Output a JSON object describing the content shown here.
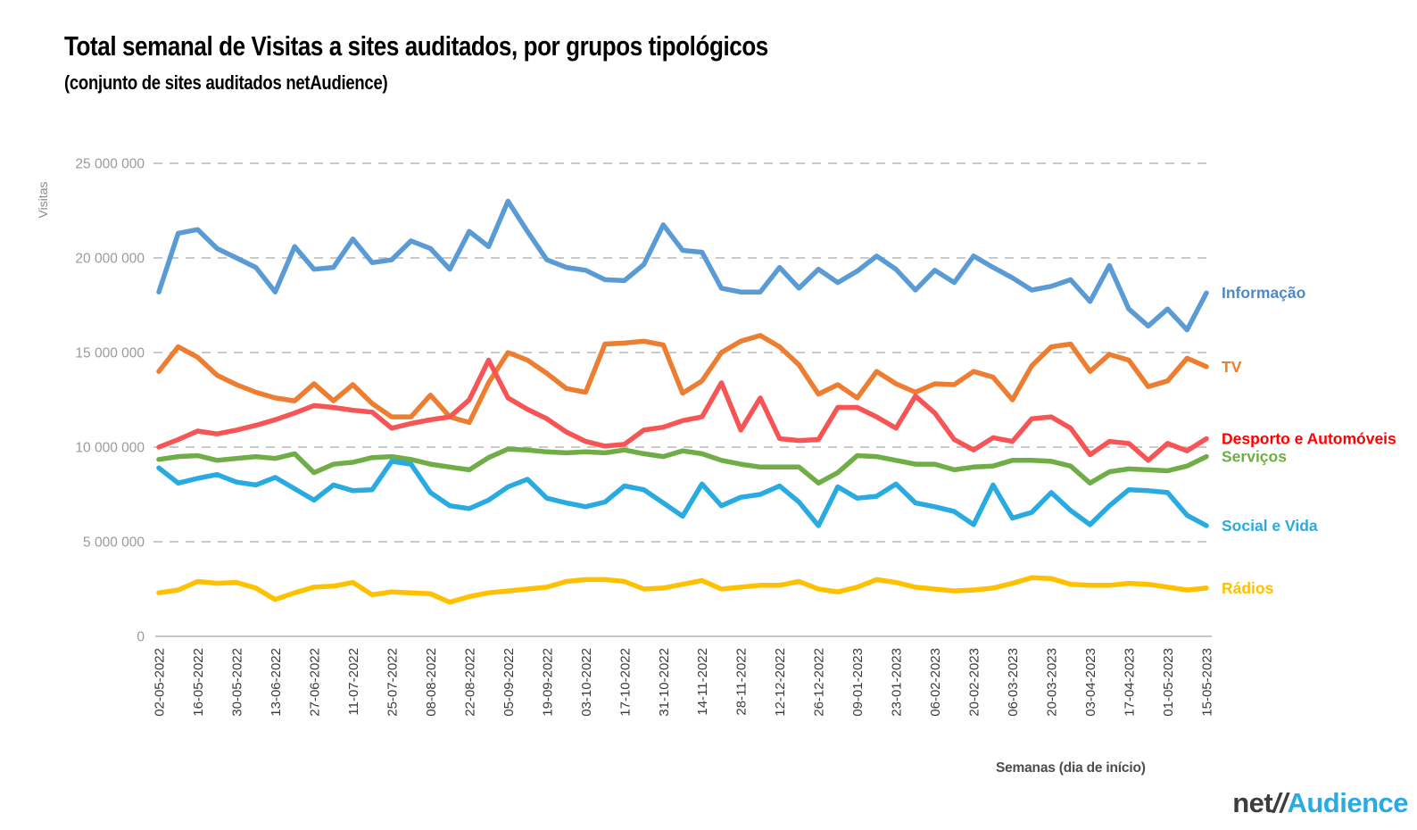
{
  "header": {
    "title": "Total semanal de Visitas a sites auditados, por grupos tipológicos",
    "subtitle": "(conjunto de sites auditados netAudience)"
  },
  "chart_data": {
    "type": "line",
    "units": "visits (values stored in millions)",
    "ylabel": "Visitas",
    "xlabel": "Semanas  (dia de início)",
    "ylim": [
      0,
      25000000
    ],
    "grid": "horizontal-dashed",
    "legend_position": "labels-at-line-ends-right",
    "y_tick_values_millions": [
      0,
      5,
      10,
      15,
      20,
      25
    ],
    "y_tick_labels": [
      "0",
      "5 000 000",
      "10 000 000",
      "15 000 000",
      "20 000 000",
      "25 000 000"
    ],
    "x_tick_every": 2,
    "x": [
      "02-05-2022",
      "09-05-2022",
      "16-05-2022",
      "23-05-2022",
      "30-05-2022",
      "06-06-2022",
      "13-06-2022",
      "20-06-2022",
      "27-06-2022",
      "04-07-2022",
      "11-07-2022",
      "18-07-2022",
      "25-07-2022",
      "01-08-2022",
      "08-08-2022",
      "15-08-2022",
      "22-08-2022",
      "29-08-2022",
      "05-09-2022",
      "12-09-2022",
      "19-09-2022",
      "26-09-2022",
      "03-10-2022",
      "10-10-2022",
      "17-10-2022",
      "24-10-2022",
      "31-10-2022",
      "07-11-2022",
      "14-11-2022",
      "21-11-2022",
      "28-11-2022",
      "05-12-2022",
      "12-12-2022",
      "19-12-2022",
      "26-12-2022",
      "02-01-2023",
      "09-01-2023",
      "16-01-2023",
      "23-01-2023",
      "30-01-2023",
      "06-02-2023",
      "13-02-2023",
      "20-02-2023",
      "27-02-2023",
      "06-03-2023",
      "13-03-2023",
      "20-03-2023",
      "27-03-2023",
      "03-04-2023",
      "10-04-2023",
      "17-04-2023",
      "24-04-2023",
      "01-05-2023",
      "08-05-2023",
      "15-05-2023"
    ],
    "x_tick_labels": [
      "02-05-2022",
      "16-05-2022",
      "30-05-2022",
      "13-06-2022",
      "27-06-2022",
      "11-07-2022",
      "25-07-2022",
      "08-08-2022",
      "22-08-2022",
      "05-09-2022",
      "19-09-2022",
      "03-10-2022",
      "17-10-2022",
      "31-10-2022",
      "14-11-2022",
      "28-11-2022",
      "12-12-2022",
      "26-12-2022",
      "09-01-2023",
      "23-01-2023",
      "06-02-2023",
      "20-02-2023",
      "06-03-2023",
      "20-03-2023",
      "03-04-2023",
      "17-04-2023",
      "01-05-2023",
      "15-05-2023"
    ],
    "series": [
      {
        "name": "Informação",
        "color": "#5B9BD5",
        "label_color": "#4E8AC8",
        "values_millions": [
          18.2,
          21.3,
          21.5,
          20.5,
          20.0,
          19.5,
          18.2,
          20.6,
          19.4,
          19.5,
          21.0,
          19.75,
          19.9,
          20.9,
          20.5,
          19.4,
          21.4,
          20.6,
          23.0,
          21.4,
          19.9,
          19.5,
          19.35,
          18.85,
          18.8,
          19.65,
          21.75,
          20.4,
          20.3,
          18.4,
          18.2,
          18.2,
          19.5,
          18.4,
          19.4,
          18.7,
          19.3,
          20.1,
          19.4,
          18.3,
          19.35,
          18.7,
          20.1,
          19.5,
          18.95,
          18.3,
          18.5,
          18.85,
          17.7,
          19.6,
          17.3,
          16.4,
          17.3,
          16.2,
          18.15
        ]
      },
      {
        "name": "TV",
        "color": "#ED7D31",
        "label_color": "#ED7D31",
        "values_millions": [
          14.0,
          15.3,
          14.75,
          13.8,
          13.3,
          12.9,
          12.6,
          12.45,
          13.35,
          12.45,
          13.3,
          12.3,
          11.6,
          11.6,
          12.75,
          11.6,
          11.3,
          13.4,
          15.0,
          14.6,
          13.9,
          13.1,
          12.9,
          15.45,
          15.5,
          15.6,
          15.4,
          12.85,
          13.5,
          15.0,
          15.6,
          15.9,
          15.3,
          14.35,
          12.8,
          13.3,
          12.6,
          14.0,
          13.35,
          12.9,
          13.35,
          13.3,
          14.0,
          13.7,
          12.5,
          14.3,
          15.3,
          15.45,
          14.0,
          14.9,
          14.6,
          13.2,
          13.5,
          14.7,
          14.25
        ]
      },
      {
        "name": "Desporto e Automóveis",
        "color": "#F75455",
        "label_color": "#FF0000",
        "values_millions": [
          10.0,
          10.4,
          10.85,
          10.7,
          10.9,
          11.15,
          11.45,
          11.8,
          12.2,
          12.1,
          11.95,
          11.85,
          11.0,
          11.25,
          11.45,
          11.6,
          12.5,
          14.6,
          12.6,
          12.0,
          11.5,
          10.8,
          10.3,
          10.05,
          10.15,
          10.9,
          11.05,
          11.4,
          11.6,
          13.4,
          10.9,
          12.6,
          10.45,
          10.35,
          10.4,
          12.1,
          12.1,
          11.6,
          11.0,
          12.7,
          11.8,
          10.4,
          9.85,
          10.5,
          10.3,
          11.5,
          11.6,
          11.0,
          9.6,
          10.3,
          10.2,
          9.3,
          10.2,
          9.8,
          10.45
        ]
      },
      {
        "name": "Serviços",
        "color": "#70AD47",
        "label_color": "#70AD47",
        "values_millions": [
          9.35,
          9.5,
          9.55,
          9.3,
          9.4,
          9.5,
          9.4,
          9.65,
          8.65,
          9.1,
          9.2,
          9.45,
          9.5,
          9.35,
          9.1,
          8.95,
          8.8,
          9.45,
          9.9,
          9.85,
          9.75,
          9.7,
          9.75,
          9.7,
          9.85,
          9.65,
          9.5,
          9.8,
          9.65,
          9.3,
          9.1,
          8.95,
          8.95,
          8.95,
          8.1,
          8.65,
          9.55,
          9.5,
          9.3,
          9.1,
          9.1,
          8.8,
          8.95,
          9.0,
          9.3,
          9.3,
          9.25,
          9.0,
          8.1,
          8.7,
          8.85,
          8.8,
          8.75,
          9.0,
          9.5
        ]
      },
      {
        "name": "Social e Vida",
        "color": "#29ABE2",
        "label_color": "#29ABE2",
        "values_millions": [
          8.9,
          8.1,
          8.35,
          8.55,
          8.15,
          8.0,
          8.4,
          7.8,
          7.2,
          8.0,
          7.7,
          7.75,
          9.25,
          9.1,
          7.6,
          6.9,
          6.75,
          7.2,
          7.9,
          8.3,
          7.3,
          7.05,
          6.85,
          7.1,
          7.95,
          7.75,
          7.05,
          6.35,
          8.05,
          6.9,
          7.35,
          7.5,
          7.95,
          7.1,
          5.85,
          7.9,
          7.3,
          7.4,
          8.05,
          7.05,
          6.85,
          6.6,
          5.9,
          8.0,
          6.25,
          6.55,
          7.6,
          6.65,
          5.9,
          6.9,
          7.75,
          7.7,
          7.6,
          6.4,
          5.85
        ]
      },
      {
        "name": "Rádios",
        "color": "#FFC000",
        "label_color": "#FFC000",
        "values_millions": [
          2.3,
          2.45,
          2.9,
          2.8,
          2.85,
          2.55,
          1.95,
          2.3,
          2.6,
          2.65,
          2.85,
          2.2,
          2.35,
          2.3,
          2.25,
          1.8,
          2.1,
          2.3,
          2.4,
          2.5,
          2.6,
          2.9,
          3.0,
          3.0,
          2.9,
          2.5,
          2.55,
          2.75,
          2.95,
          2.5,
          2.6,
          2.7,
          2.7,
          2.9,
          2.5,
          2.35,
          2.6,
          3.0,
          2.85,
          2.6,
          2.5,
          2.4,
          2.45,
          2.55,
          2.8,
          3.1,
          3.05,
          2.75,
          2.7,
          2.7,
          2.8,
          2.75,
          2.6,
          2.45,
          2.55
        ]
      }
    ]
  },
  "footer": {
    "logo_net": "net",
    "logo_slashes": "//",
    "logo_audience": "Audience"
  }
}
